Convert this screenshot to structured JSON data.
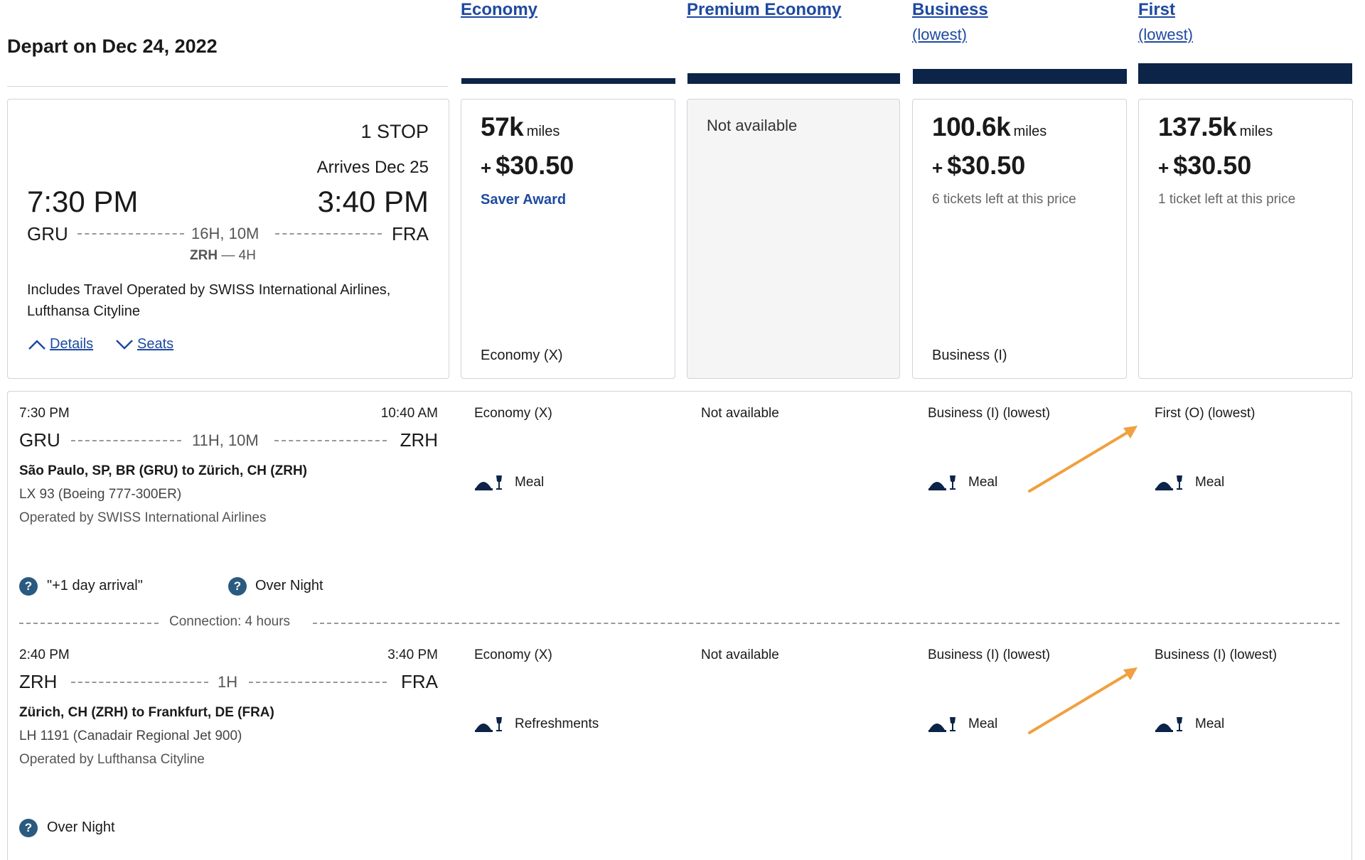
{
  "depart_label": "Depart on Dec 24, 2022",
  "cabins": [
    {
      "title": "Economy",
      "subtitle": ""
    },
    {
      "title": "Premium Economy",
      "subtitle": ""
    },
    {
      "title": "Business",
      "subtitle": "(lowest)"
    },
    {
      "title": "First",
      "subtitle": "(lowest)"
    }
  ],
  "summary": {
    "stops": "1 STOP",
    "arrives": "Arrives Dec 25",
    "depart_time": "7:30 PM",
    "arrive_time": "3:40 PM",
    "origin": "GRU",
    "destination": "FRA",
    "duration": "16H, 10M",
    "layover_code": "ZRH",
    "layover_sep": "—",
    "layover_duration": "4H",
    "operated_note": "Includes Travel Operated by SWISS International Airlines, Lufthansa Cityline",
    "details_label": "Details",
    "seats_label": "Seats"
  },
  "fares": [
    {
      "miles": "57k",
      "miles_unit": "miles",
      "plus": "+",
      "price": "$30.50",
      "note": "Saver Award",
      "fare_class": "Economy (X)"
    },
    {
      "not_available": "Not available"
    },
    {
      "miles": "100.6k",
      "miles_unit": "miles",
      "plus": "+",
      "price": "$30.50",
      "note": "6 tickets left at this price",
      "fare_class": "Business (I)"
    },
    {
      "miles": "137.5k",
      "miles_unit": "miles",
      "plus": "+",
      "price": "$30.50",
      "note": "1 ticket left at this price",
      "fare_class": ""
    }
  ],
  "segments": [
    {
      "depart_time": "7:30 PM",
      "arrive_time": "10:40 AM",
      "origin": "GRU",
      "destination": "ZRH",
      "duration": "11H, 10M",
      "route": "São Paulo, SP, BR (GRU) to Zürich, CH (ZRH)",
      "flight": "LX 93 (Boeing 777-300ER)",
      "operator": "Operated by SWISS International Airlines",
      "cabins": [
        {
          "label": "Economy (X)",
          "service": "Meal"
        },
        {
          "label": "Not available",
          "service": ""
        },
        {
          "label": "Business (I) (lowest)",
          "service": "Meal"
        },
        {
          "label": "First (O) (lowest)",
          "service": "Meal"
        }
      ],
      "notes": [
        "\"+1 day arrival\"",
        "Over Night"
      ]
    },
    {
      "depart_time": "2:40 PM",
      "arrive_time": "3:40 PM",
      "origin": "ZRH",
      "destination": "FRA",
      "duration": "1H",
      "route": "Zürich, CH (ZRH) to Frankfurt, DE (FRA)",
      "flight": "LH 1191 (Canadair Regional Jet 900)",
      "operator": "Operated by Lufthansa Cityline",
      "cabins": [
        {
          "label": "Economy (X)",
          "service": "Refreshments"
        },
        {
          "label": "Not available",
          "service": ""
        },
        {
          "label": "Business (I) (lowest)",
          "service": "Meal"
        },
        {
          "label": "Business (I) (lowest)",
          "service": "Meal"
        }
      ],
      "notes": [
        "Over Night"
      ]
    }
  ],
  "connection": "Connection: 4 hours",
  "icons": [
    "chevron-up-icon",
    "chevron-down-icon",
    "meal-icon",
    "help-icon",
    "arrow-icon"
  ],
  "colors": {
    "link": "#1e4aa0",
    "bar": "#0b2447",
    "arrow": "#f0a040",
    "help": "#2a5a80"
  }
}
